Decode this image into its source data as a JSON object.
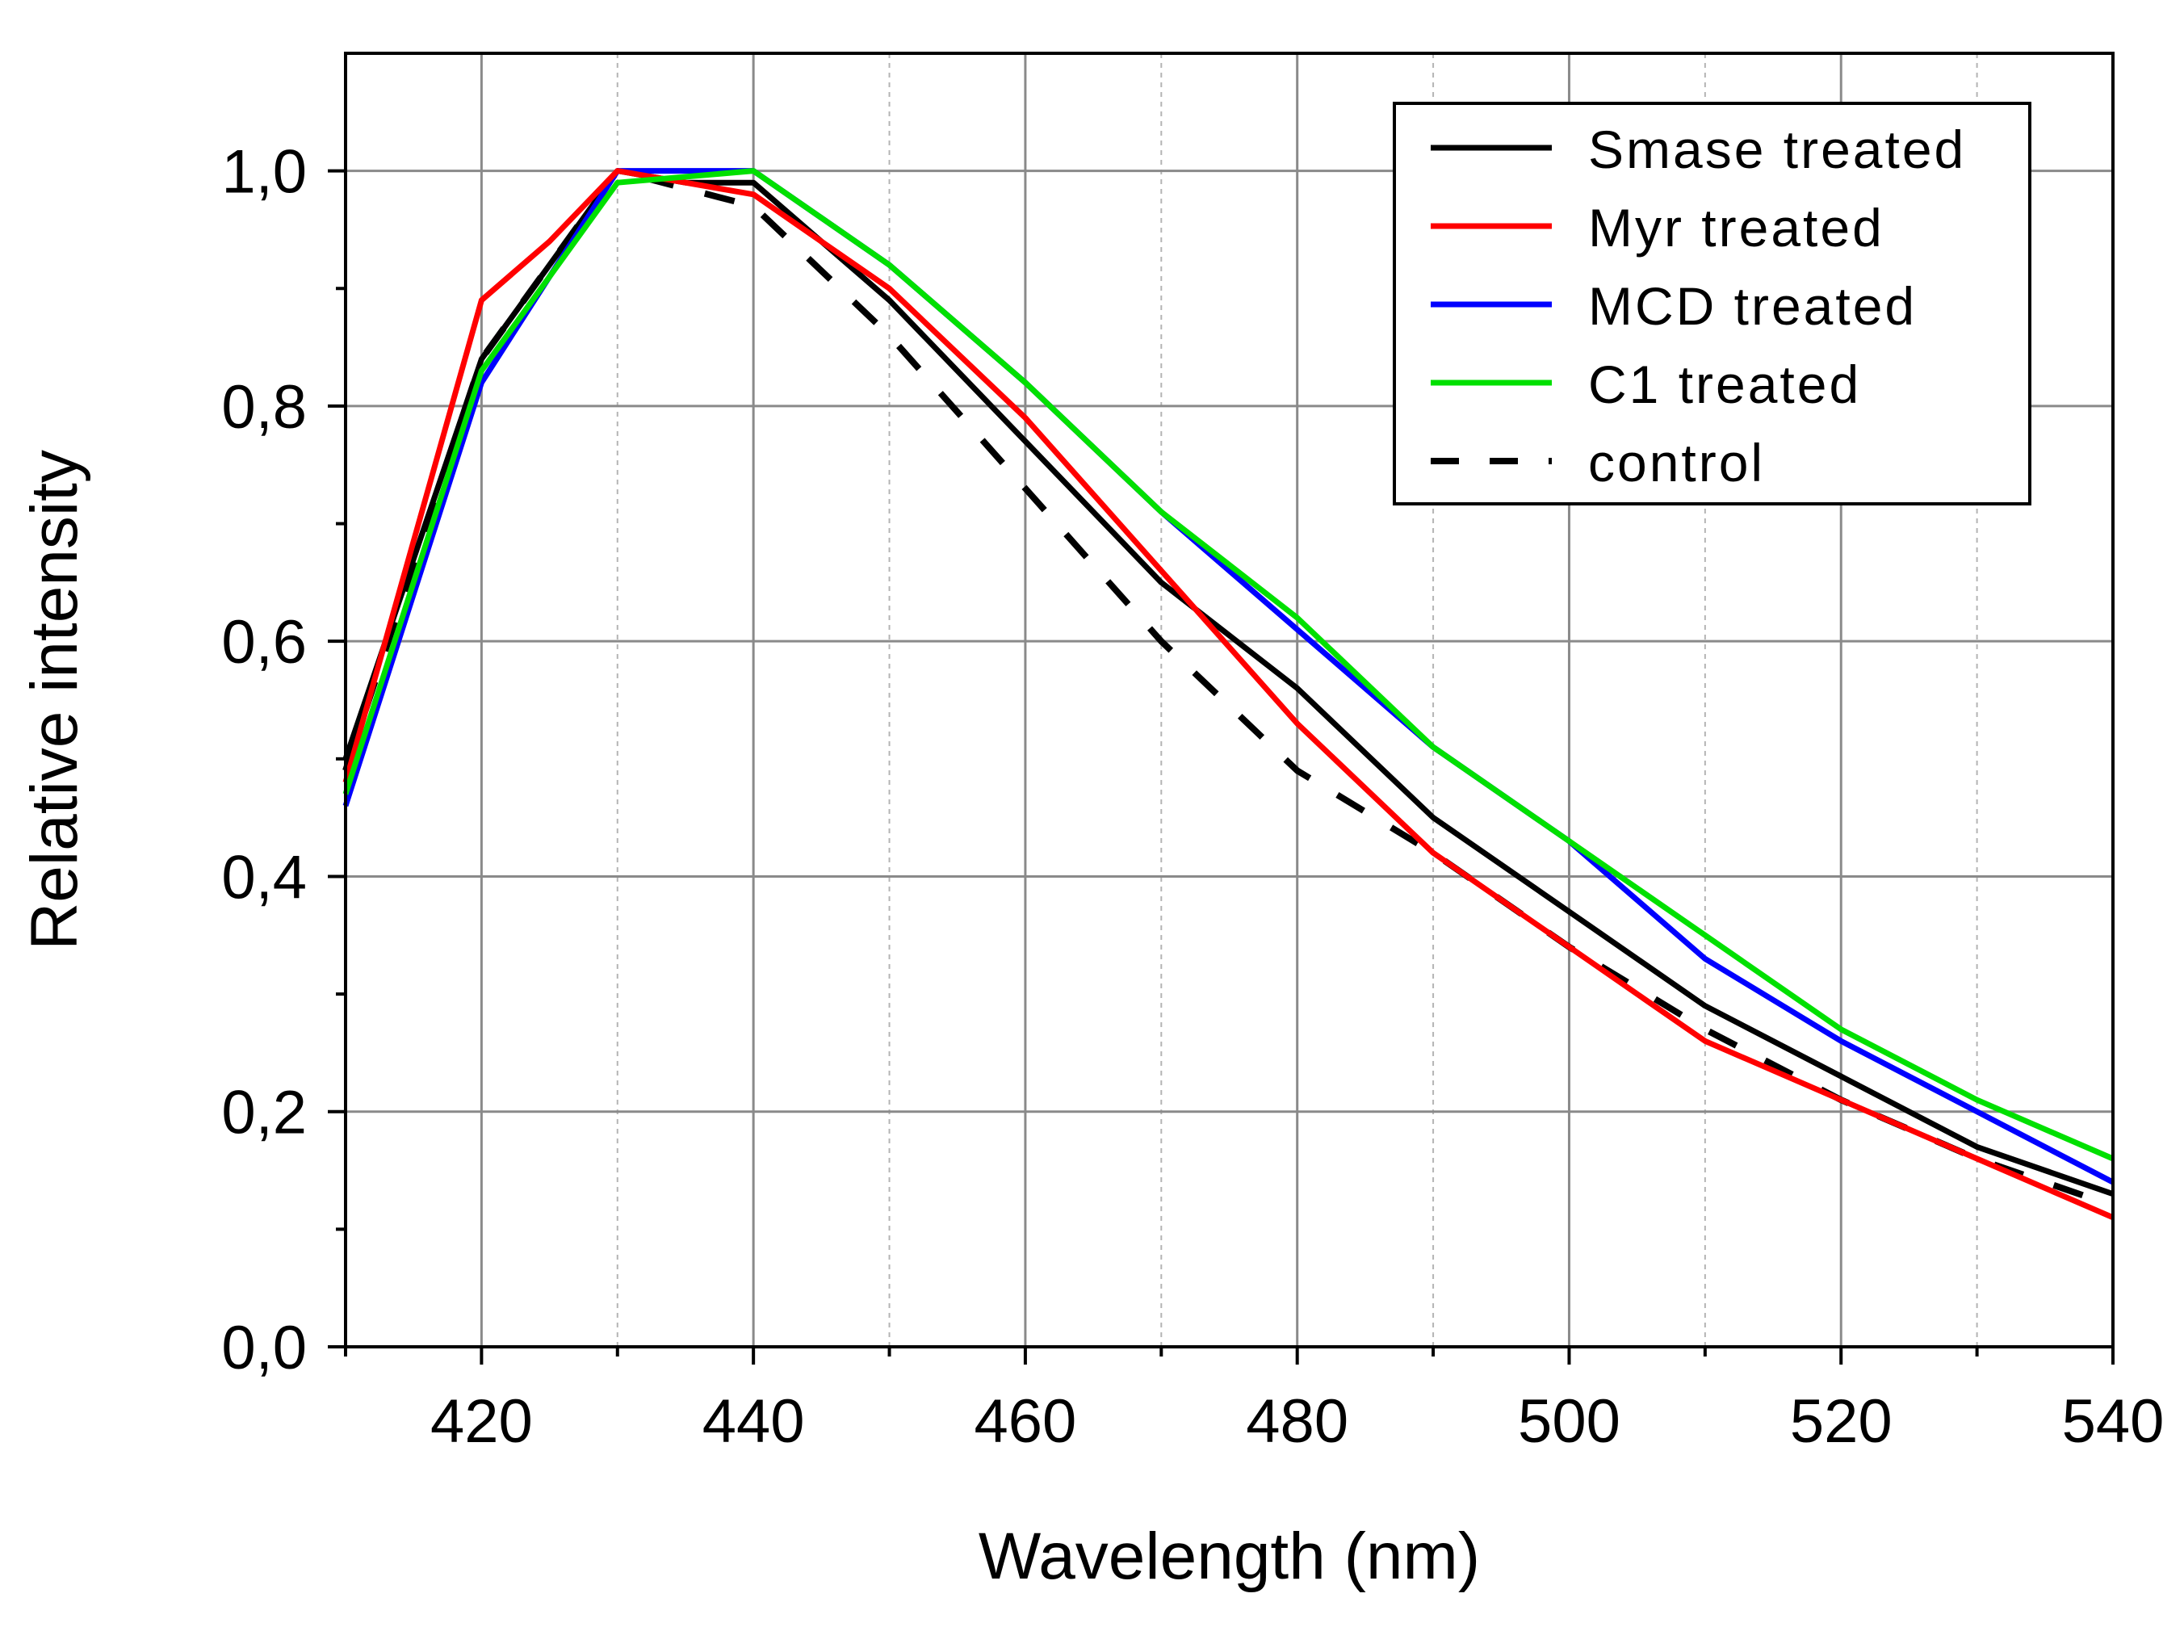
{
  "chart_data": {
    "type": "line",
    "title": "",
    "xlabel": "Wavelength (nm)",
    "ylabel": "Relative intensity",
    "xlim": [
      410,
      540
    ],
    "ylim": [
      0.0,
      1.1
    ],
    "xticks": [
      420,
      440,
      460,
      480,
      500,
      520,
      540
    ],
    "xtick_labels": [
      "420",
      "440",
      "460",
      "480",
      "500",
      "520",
      "540"
    ],
    "xminor": [
      410,
      430,
      450,
      470,
      490,
      510,
      530
    ],
    "yticks": [
      0.0,
      0.2,
      0.4,
      0.6,
      0.8,
      1.0
    ],
    "ytick_labels": [
      "0,0",
      "0,2",
      "0,4",
      "0,6",
      "0,8",
      "1,0"
    ],
    "yminor": [
      0.1,
      0.3,
      0.5,
      0.7,
      0.9
    ],
    "grid": true,
    "legend_position": "top-right",
    "series": [
      {
        "name": "Smase treated",
        "color": "#000000",
        "dash": "solid",
        "x": [
          410,
          420,
          430,
          435,
          440,
          450,
          460,
          470,
          480,
          490,
          500,
          510,
          520,
          530,
          540
        ],
        "y": [
          0.5,
          0.84,
          1.0,
          0.99,
          0.99,
          0.89,
          0.77,
          0.65,
          0.56,
          0.45,
          0.37,
          0.29,
          0.23,
          0.17,
          0.13
        ]
      },
      {
        "name": "Myr treated",
        "color": "#ff0000",
        "dash": "solid",
        "x": [
          410,
          420,
          425,
          430,
          440,
          450,
          460,
          470,
          480,
          490,
          500,
          510,
          520,
          530,
          540
        ],
        "y": [
          0.48,
          0.89,
          0.94,
          1.0,
          0.98,
          0.9,
          0.79,
          0.66,
          0.53,
          0.42,
          0.34,
          0.26,
          0.21,
          0.16,
          0.11
        ]
      },
      {
        "name": "MCD treated",
        "color": "#0000ff",
        "dash": "solid",
        "x": [
          410,
          420,
          430,
          440,
          450,
          460,
          470,
          480,
          490,
          500,
          510,
          520,
          530,
          540
        ],
        "y": [
          0.46,
          0.82,
          1.0,
          1.0,
          0.92,
          0.82,
          0.71,
          0.61,
          0.51,
          0.43,
          0.33,
          0.26,
          0.2,
          0.14
        ]
      },
      {
        "name": "C1 treated",
        "color": "#00e000",
        "dash": "solid",
        "x": [
          410,
          420,
          430,
          440,
          450,
          460,
          470,
          480,
          490,
          500,
          510,
          520,
          530,
          540
        ],
        "y": [
          0.47,
          0.83,
          0.99,
          1.0,
          0.92,
          0.82,
          0.71,
          0.62,
          0.51,
          0.43,
          0.35,
          0.27,
          0.21,
          0.16
        ]
      },
      {
        "name": "control",
        "color": "#000000",
        "dash": "dashed",
        "x": [
          410,
          420,
          430,
          440,
          450,
          460,
          470,
          480,
          490,
          500,
          510,
          520,
          530,
          540
        ],
        "y": [
          0.49,
          0.84,
          1.0,
          0.97,
          0.86,
          0.73,
          0.6,
          0.49,
          0.42,
          0.34,
          0.27,
          0.21,
          0.16,
          0.12
        ]
      }
    ]
  }
}
